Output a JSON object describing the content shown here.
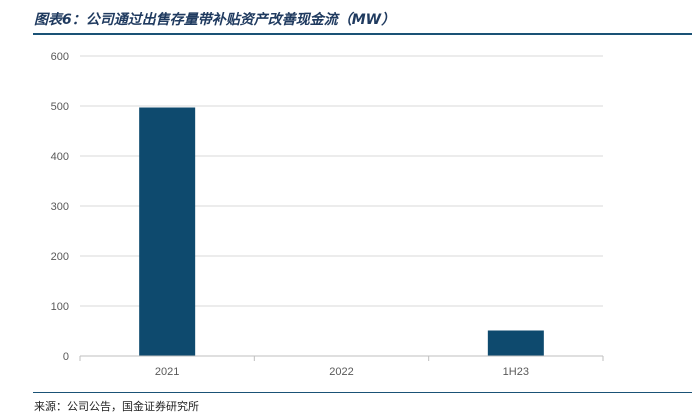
{
  "figure": {
    "title": "图表6：公司通过出售存量带补贴资产改善现金流（MW）",
    "source": "来源：公司公告，国金证券研究所"
  },
  "chart_data": {
    "type": "bar",
    "title": "图表6：公司通过出售存量带补贴资产改善现金流（MW）",
    "categories": [
      "2021",
      "2022",
      "1H23"
    ],
    "values": [
      497,
      0,
      51
    ],
    "xlabel": "",
    "ylabel": "",
    "ylim": [
      0,
      600
    ],
    "yticks": [
      "0",
      "100",
      "200",
      "300",
      "400",
      "500",
      "600"
    ],
    "grid": true,
    "legend": "none",
    "bar_color": "#0e4a6e",
    "grid_color": "#d9d9d9"
  }
}
